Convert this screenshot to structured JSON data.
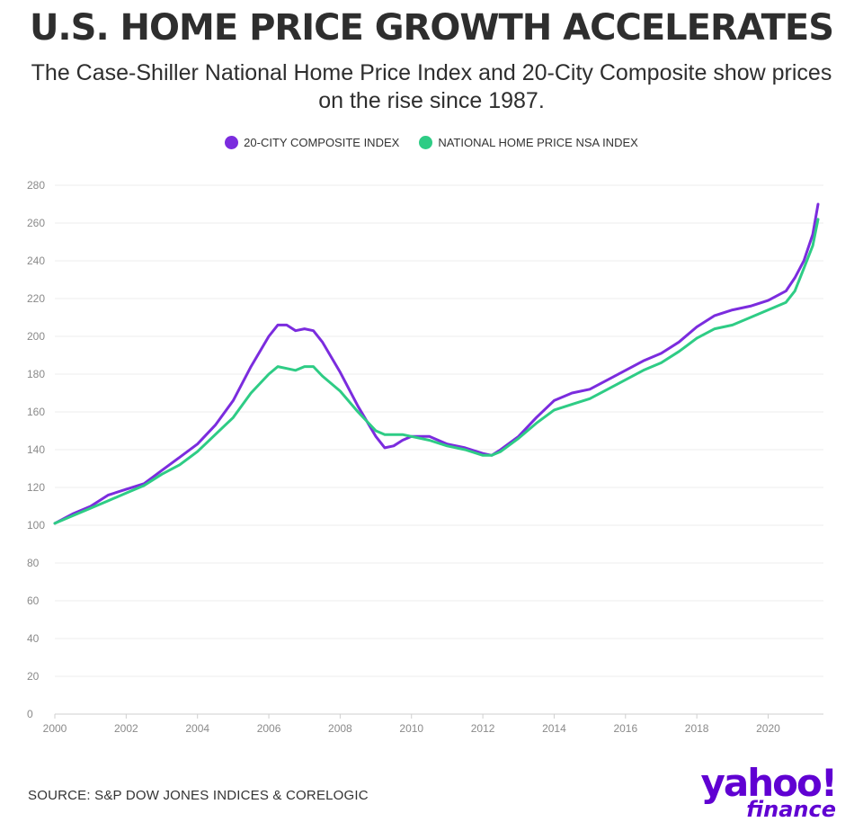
{
  "title": "U.S. HOME PRICE GROWTH ACCELERATES",
  "subtitle_line1": "The Case-Shiller National Home Price Index and 20-City Composite show prices",
  "subtitle_line2": "on the rise since 1987.",
  "source": "SOURCE: S&P DOW JONES INDICES & CORELOGIC",
  "logo": {
    "line1": "yahoo!",
    "line2": "finance",
    "color": "#6001d2"
  },
  "chart_data": {
    "type": "line",
    "xlim": [
      2000,
      2021.5
    ],
    "ylim": [
      0,
      280
    ],
    "x_ticks": [
      "2000",
      "2002",
      "2004",
      "2006",
      "2008",
      "2010",
      "2012",
      "2014",
      "2016",
      "2018",
      "2020"
    ],
    "y_ticks": [
      "0",
      "20",
      "40",
      "60",
      "80",
      "100",
      "120",
      "140",
      "160",
      "180",
      "200",
      "220",
      "240",
      "260",
      "280"
    ],
    "grid": true,
    "legend_position": "top-center",
    "series": [
      {
        "name": "20-CITY COMPOSITE INDEX",
        "color": "#7b2cde",
        "points": [
          [
            2000.0,
            101
          ],
          [
            2000.5,
            106
          ],
          [
            2001.0,
            110
          ],
          [
            2001.5,
            116
          ],
          [
            2002.0,
            119
          ],
          [
            2002.5,
            122
          ],
          [
            2003.0,
            129
          ],
          [
            2003.5,
            136
          ],
          [
            2004.0,
            143
          ],
          [
            2004.5,
            153
          ],
          [
            2005.0,
            166
          ],
          [
            2005.5,
            184
          ],
          [
            2006.0,
            200
          ],
          [
            2006.25,
            206
          ],
          [
            2006.5,
            206
          ],
          [
            2006.75,
            203
          ],
          [
            2007.0,
            204
          ],
          [
            2007.25,
            203
          ],
          [
            2007.5,
            197
          ],
          [
            2008.0,
            181
          ],
          [
            2008.5,
            163
          ],
          [
            2009.0,
            147
          ],
          [
            2009.25,
            141
          ],
          [
            2009.5,
            142
          ],
          [
            2009.75,
            145
          ],
          [
            2010.0,
            147
          ],
          [
            2010.5,
            147
          ],
          [
            2011.0,
            143
          ],
          [
            2011.5,
            141
          ],
          [
            2012.0,
            138
          ],
          [
            2012.25,
            137
          ],
          [
            2012.5,
            140
          ],
          [
            2013.0,
            147
          ],
          [
            2013.5,
            157
          ],
          [
            2014.0,
            166
          ],
          [
            2014.5,
            170
          ],
          [
            2015.0,
            172
          ],
          [
            2015.5,
            177
          ],
          [
            2016.0,
            182
          ],
          [
            2016.5,
            187
          ],
          [
            2017.0,
            191
          ],
          [
            2017.5,
            197
          ],
          [
            2018.0,
            205
          ],
          [
            2018.5,
            211
          ],
          [
            2019.0,
            214
          ],
          [
            2019.5,
            216
          ],
          [
            2020.0,
            219
          ],
          [
            2020.5,
            224
          ],
          [
            2020.75,
            231
          ],
          [
            2021.0,
            240
          ],
          [
            2021.25,
            254
          ],
          [
            2021.4,
            270
          ]
        ]
      },
      {
        "name": "NATIONAL HOME PRICE NSA INDEX",
        "color": "#2ecc85",
        "points": [
          [
            2000.0,
            101
          ],
          [
            2000.5,
            105
          ],
          [
            2001.0,
            109
          ],
          [
            2001.5,
            113
          ],
          [
            2002.0,
            117
          ],
          [
            2002.5,
            121
          ],
          [
            2003.0,
            127
          ],
          [
            2003.5,
            132
          ],
          [
            2004.0,
            139
          ],
          [
            2004.5,
            148
          ],
          [
            2005.0,
            157
          ],
          [
            2005.5,
            170
          ],
          [
            2006.0,
            180
          ],
          [
            2006.25,
            184
          ],
          [
            2006.5,
            183
          ],
          [
            2006.75,
            182
          ],
          [
            2007.0,
            184
          ],
          [
            2007.25,
            184
          ],
          [
            2007.5,
            179
          ],
          [
            2008.0,
            171
          ],
          [
            2008.5,
            160
          ],
          [
            2009.0,
            150
          ],
          [
            2009.25,
            148
          ],
          [
            2009.5,
            148
          ],
          [
            2009.75,
            148
          ],
          [
            2010.0,
            147
          ],
          [
            2010.5,
            145
          ],
          [
            2011.0,
            142
          ],
          [
            2011.5,
            140
          ],
          [
            2012.0,
            137
          ],
          [
            2012.25,
            137
          ],
          [
            2012.5,
            139
          ],
          [
            2013.0,
            146
          ],
          [
            2013.5,
            154
          ],
          [
            2014.0,
            161
          ],
          [
            2014.5,
            164
          ],
          [
            2015.0,
            167
          ],
          [
            2015.5,
            172
          ],
          [
            2016.0,
            177
          ],
          [
            2016.5,
            182
          ],
          [
            2017.0,
            186
          ],
          [
            2017.5,
            192
          ],
          [
            2018.0,
            199
          ],
          [
            2018.5,
            204
          ],
          [
            2019.0,
            206
          ],
          [
            2019.5,
            210
          ],
          [
            2020.0,
            214
          ],
          [
            2020.5,
            218
          ],
          [
            2020.75,
            224
          ],
          [
            2021.0,
            236
          ],
          [
            2021.25,
            248
          ],
          [
            2021.4,
            262
          ]
        ]
      }
    ]
  }
}
